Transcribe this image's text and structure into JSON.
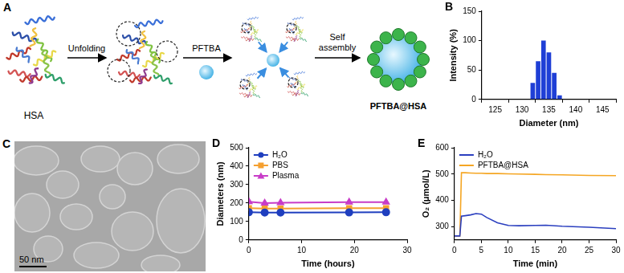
{
  "diagram": {
    "panel": "A",
    "protein": "HSA",
    "step_1": "Unfolding",
    "core": "PFTBA",
    "step_2": "Self assembly",
    "product": "PFTBA@HSA"
  },
  "micrograph": {
    "panel": "C",
    "scale_bar": "50 nm"
  },
  "chart_data": [
    {
      "panel": "B",
      "type": "bar",
      "x_label": "Diameter (nm)",
      "y_label": "Intensity (%)",
      "x": [
        132,
        133,
        134,
        135,
        136,
        137
      ],
      "values": [
        28,
        65,
        100,
        80,
        45,
        7
      ],
      "color": "#1f3fd6",
      "xlim": [
        125,
        145
      ],
      "xticks": [
        125,
        130,
        135,
        140,
        145
      ],
      "ylim": [
        0,
        150
      ],
      "yticks": [
        0,
        50,
        100,
        150
      ],
      "grid": false
    },
    {
      "panel": "D",
      "type": "line",
      "x_label": "Time (hours)",
      "y_label": "Diameters (nm)",
      "x": [
        0,
        3,
        6,
        19,
        26
      ],
      "series": [
        {
          "name": "H₂O",
          "color": "#1f3fbf",
          "marker": "circle",
          "values": [
            150,
            148,
            148,
            149,
            150
          ]
        },
        {
          "name": "PBS",
          "color": "#f5a030",
          "marker": "square",
          "values": [
            172,
            170,
            170,
            172,
            172
          ]
        },
        {
          "name": "Plasma",
          "color": "#c83cc8",
          "marker": "triangle",
          "values": [
            207,
            200,
            202,
            205,
            205
          ]
        }
      ],
      "xlim": [
        0,
        30
      ],
      "xticks": [
        0,
        10,
        20,
        30
      ],
      "ylim": [
        0,
        500
      ],
      "yticks": [
        0,
        100,
        200,
        300,
        400,
        500
      ],
      "grid": false,
      "legend": "upper left"
    },
    {
      "panel": "E",
      "type": "line",
      "x_label": "Time (min)",
      "y_label": "O₂ (μmol/L)",
      "x": [
        0,
        1,
        1.3,
        2,
        3,
        4,
        5,
        6,
        8,
        10,
        12,
        15,
        17,
        20,
        25,
        30
      ],
      "series": [
        {
          "name": "H₂O",
          "color": "#2b3fbf",
          "values": [
            265,
            265,
            340,
            342,
            345,
            350,
            348,
            335,
            315,
            305,
            304,
            305,
            306,
            302,
            298,
            293
          ]
        },
        {
          "name": "PFTBA@HSA",
          "color": "#f5a623",
          "values": [
            265,
            265,
            505,
            505,
            504,
            503,
            503,
            502,
            502,
            501,
            500,
            499,
            498,
            497,
            495,
            494
          ]
        }
      ],
      "xlim": [
        0,
        30
      ],
      "xticks": [
        0,
        5,
        10,
        15,
        20,
        25,
        30
      ],
      "ylim": [
        250,
        600
      ],
      "yticks": [
        300,
        400,
        500,
        600
      ],
      "grid": false,
      "legend": "upper left"
    }
  ]
}
